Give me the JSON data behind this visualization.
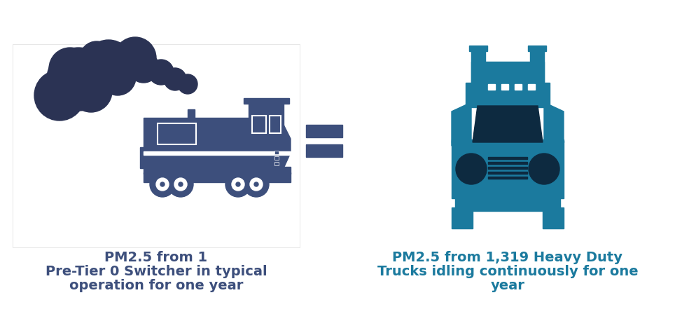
{
  "background_color": "#ffffff",
  "train_color": "#3d4f7c",
  "smoke_color": "#2b3354",
  "truck_color": "#1b7a9e",
  "truck_dark": "#0d2a40",
  "equals_color": "#3d4f7c",
  "left_box_bg": "#ffffff",
  "left_box_edge": "#cccccc",
  "left_text_line1": "PM2.5 from 1",
  "left_text_line2": "Pre-Tier 0 Switcher in typical",
  "left_text_line3": "operation for one year",
  "right_text_line1": "PM2.5 from 1,319 Heavy Duty",
  "right_text_line2": "Trucks idling continuously for one",
  "right_text_line3": "year",
  "text_color": "#3d4f7c",
  "right_text_color": "#1b7a9e",
  "text_fontsize": 14,
  "figsize": [
    9.64,
    4.58
  ],
  "dpi": 100
}
